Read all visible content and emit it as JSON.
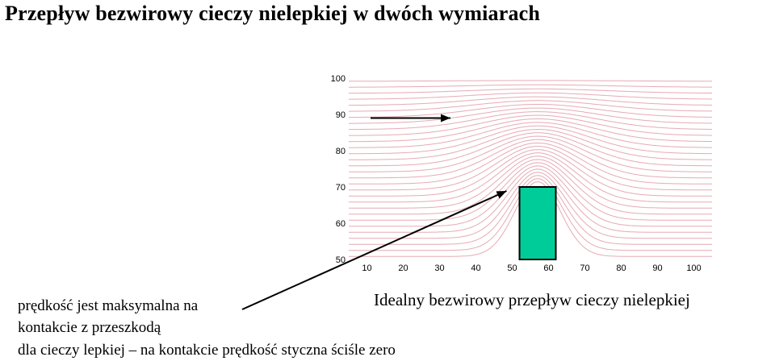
{
  "title": "Przepływ bezwirowy cieczy nielepkiej w dwóch wymiarach",
  "axes": {
    "x_ticks": [
      "10",
      "20",
      "30",
      "40",
      "50",
      "60",
      "70",
      "80",
      "90",
      "100"
    ],
    "y_ticks": [
      "100",
      "90",
      "80",
      "70",
      "60",
      "50"
    ],
    "xlim": [
      0,
      100
    ],
    "ylim": [
      50,
      100
    ]
  },
  "obstacle": {
    "color": "#00cc99",
    "x_range": [
      47,
      57
    ],
    "y_range": [
      50,
      70
    ]
  },
  "streamlines": {
    "color": "#e6aab4",
    "count": 30
  },
  "flow_arrow": {
    "from": [
      6,
      89
    ],
    "to": [
      28,
      89
    ]
  },
  "caption": "Idealny bezwirowy przepływ cieczy nielepkiej",
  "notes": {
    "line1": "prędkość jest maksymalna na",
    "line2": "kontakcie z przeszkodą",
    "line3": "dla cieczy lepkiej – na kontakcie prędkość styczna ściśle zero"
  }
}
